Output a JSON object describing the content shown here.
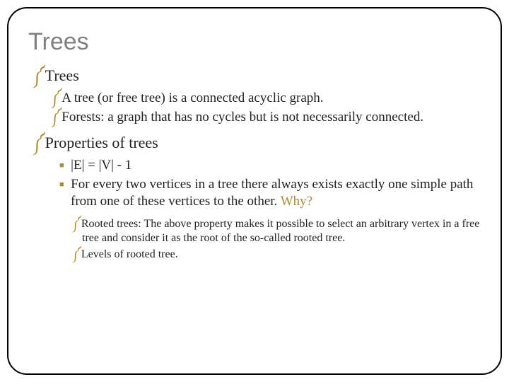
{
  "title": "Trees",
  "section1": {
    "heading": "Trees",
    "items": {
      "a": "A tree (or free tree) is a connected acyclic graph.",
      "b": "Forests: a graph that has no cycles but is not necessarily connected."
    }
  },
  "section2": {
    "heading": "Properties of trees",
    "items": {
      "a": "|E| = |V| - 1",
      "b_pre": "For every two vertices in a tree there always exists exactly one simple path from one of these vertices to the other. ",
      "b_why": "Why?"
    },
    "sub": {
      "a": "Rooted trees: The above property makes it possible to select an arbitrary vertex in a free tree and consider it as the root of the so-called rooted tree.",
      "b": "Levels of rooted tree."
    }
  },
  "bullets": {
    "swirl": "༼",
    "square": "■"
  },
  "colors": {
    "title": "#808080",
    "accent": "#b08a2e",
    "text": "#222222",
    "border": "#000000",
    "background": "#ffffff"
  },
  "fontsizes": {
    "title": 34,
    "lvl1": 22,
    "lvl2": 19,
    "lvl3": 19,
    "lvl4": 16
  }
}
